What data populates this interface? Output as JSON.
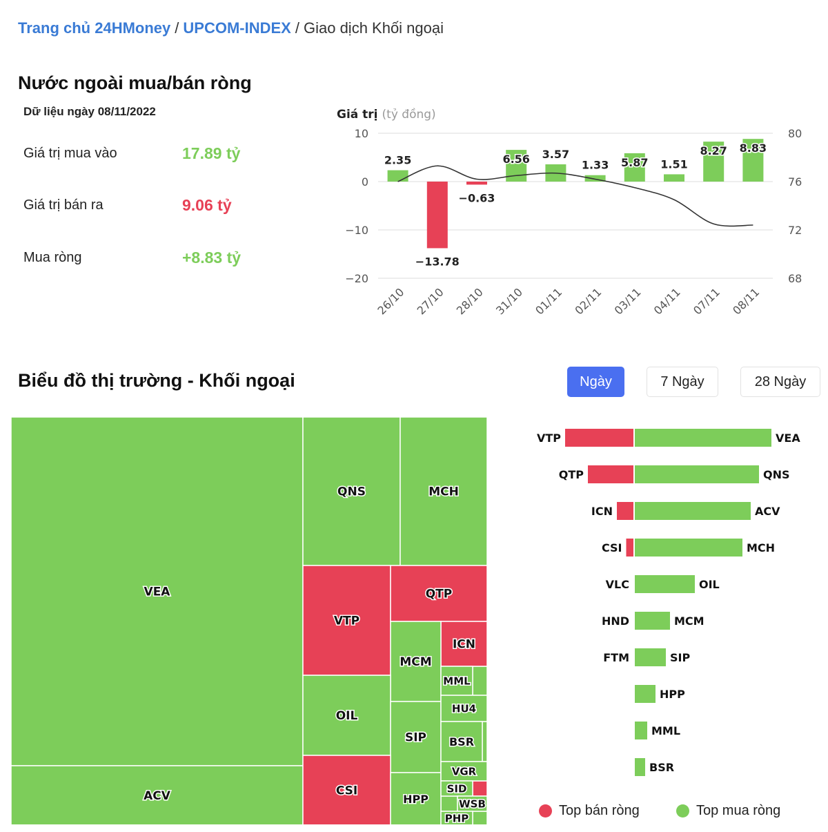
{
  "breadcrumb": {
    "home": "Trang chủ 24HMoney",
    "index": "UPCOM-INDEX",
    "current": "Giao dịch Khối ngoại",
    "separator": "/"
  },
  "summary": {
    "title": "Nước ngoài mua/bán ròng",
    "date_label": "Dữ liệu ngày 08/11/2022",
    "buy_label": "Giá trị mua vào",
    "buy_value": "17.89 tỷ",
    "sell_label": "Giá trị bán ra",
    "sell_value": "9.06 tỷ",
    "net_label": "Mua ròng",
    "net_value": "+8.83 tỷ"
  },
  "colors": {
    "green": "#7dcd5a",
    "red": "#e74156",
    "blue": "#3a7bd5",
    "tab_active": "#4a6ff0"
  },
  "market": {
    "title": "Biểu đồ thị trường - Khối ngoại",
    "tabs": [
      {
        "label": "Ngày",
        "active": true
      },
      {
        "label": "7 Ngày",
        "active": false
      },
      {
        "label": "28 Ngày",
        "active": false
      }
    ],
    "legend_sell": "Top bán ròng",
    "legend_buy": "Top mua ròng"
  },
  "chart_data": [
    {
      "type": "bar",
      "title_main": "Giá trị",
      "title_unit": "(tỷ đồng)",
      "categories": [
        "26/10",
        "27/10",
        "28/10",
        "31/10",
        "01/11",
        "02/11",
        "03/11",
        "04/11",
        "07/11",
        "08/11"
      ],
      "series": [
        {
          "name": "Mua ròng",
          "type": "bar",
          "axis": "left",
          "values": [
            2.35,
            -13.78,
            -0.63,
            6.56,
            3.57,
            1.33,
            5.87,
            1.51,
            8.27,
            8.83
          ],
          "labels": [
            "2.35",
            "−13.78",
            "−0.63",
            "6.56",
            "3.57",
            "1.33",
            "5.87",
            "1.51",
            "8.27",
            "8.83"
          ]
        },
        {
          "name": "UPCOM-INDEX",
          "type": "line",
          "axis": "right",
          "values": [
            76,
            77.3,
            76.2,
            76.5,
            76.7,
            76.2,
            75.5,
            74.5,
            72.5,
            72.4
          ]
        }
      ],
      "ylim": [
        -20,
        10
      ],
      "yticks": [
        10,
        0,
        -10,
        -20
      ],
      "ytick_labels": [
        "10",
        "0",
        "−10",
        "−20"
      ],
      "y2lim": [
        68,
        80
      ],
      "y2ticks": [
        80,
        76,
        72,
        68
      ],
      "y2tick_labels": [
        "80",
        "76",
        "72",
        "68"
      ],
      "grid": true,
      "legend": "none"
    },
    {
      "type": "treemap",
      "items": [
        {
          "ticker": "VEA",
          "side": "buy"
        },
        {
          "ticker": "ACV",
          "side": "buy"
        },
        {
          "ticker": "QNS",
          "side": "buy"
        },
        {
          "ticker": "MCH",
          "side": "buy"
        },
        {
          "ticker": "VTP",
          "side": "sell"
        },
        {
          "ticker": "QTP",
          "side": "sell"
        },
        {
          "ticker": "ICN",
          "side": "sell"
        },
        {
          "ticker": "MCM",
          "side": "buy"
        },
        {
          "ticker": "OIL",
          "side": "buy"
        },
        {
          "ticker": "SIP",
          "side": "buy"
        },
        {
          "ticker": "MML",
          "side": "buy"
        },
        {
          "ticker": "HU4",
          "side": "buy"
        },
        {
          "ticker": "BSR",
          "side": "buy"
        },
        {
          "ticker": "CSI",
          "side": "sell"
        },
        {
          "ticker": "HPP",
          "side": "buy"
        },
        {
          "ticker": "VGR",
          "side": "buy"
        },
        {
          "ticker": "SID",
          "side": "buy"
        },
        {
          "ticker": "WSB",
          "side": "buy"
        },
        {
          "ticker": "PHP",
          "side": "buy"
        }
      ]
    },
    {
      "type": "bar",
      "orientation": "horizontal-diverging",
      "rows": [
        {
          "sell": "VTP",
          "sell_value": 3.3,
          "buy": "VEA",
          "buy_value": 6.6
        },
        {
          "sell": "QTP",
          "sell_value": 2.2,
          "buy": "QNS",
          "buy_value": 6.0
        },
        {
          "sell": "ICN",
          "sell_value": 0.8,
          "buy": "ACV",
          "buy_value": 5.6
        },
        {
          "sell": "CSI",
          "sell_value": 0.35,
          "buy": "MCH",
          "buy_value": 5.2
        },
        {
          "sell": "VLC",
          "sell_value": 0,
          "buy": "OIL",
          "buy_value": 2.9
        },
        {
          "sell": "HND",
          "sell_value": 0,
          "buy": "MCM",
          "buy_value": 1.7
        },
        {
          "sell": "FTM",
          "sell_value": 0,
          "buy": "SIP",
          "buy_value": 1.5
        },
        {
          "sell": "",
          "sell_value": 0,
          "buy": "HPP",
          "buy_value": 1.0
        },
        {
          "sell": "",
          "sell_value": 0,
          "buy": "MML",
          "buy_value": 0.6
        },
        {
          "sell": "",
          "sell_value": 0,
          "buy": "BSR",
          "buy_value": 0.5
        }
      ]
    }
  ]
}
